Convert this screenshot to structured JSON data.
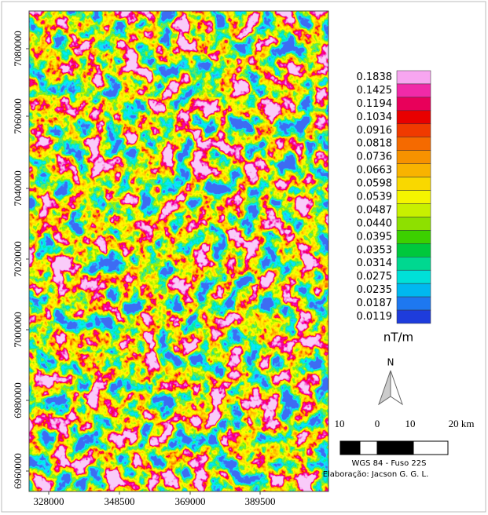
{
  "map": {
    "yticks": [
      "7080000",
      "7060000",
      "7040000",
      "7020000",
      "7000000",
      "6980000",
      "6960000"
    ],
    "xticks": [
      "328000",
      "348500",
      "369000",
      "389500"
    ]
  },
  "legend": {
    "labels": [
      "0.1838",
      "0.1425",
      "0.1194",
      "0.1034",
      "0.0916",
      "0.0818",
      "0.0736",
      "0.0663",
      "0.0598",
      "0.0539",
      "0.0487",
      "0.0440",
      "0.0395",
      "0.0353",
      "0.0314",
      "0.0275",
      "0.0235",
      "0.0187",
      "0.0119"
    ],
    "colors": [
      "#f7a6f0",
      "#f02aa8",
      "#e8005a",
      "#e80000",
      "#f03a00",
      "#f56a00",
      "#f79200",
      "#f9b300",
      "#f9d800",
      "#f5f500",
      "#c8f000",
      "#8ee000",
      "#3cd000",
      "#00c83c",
      "#00d890",
      "#00e0d8",
      "#00b8f0",
      "#1e78f0",
      "#1e3cdc"
    ],
    "unit": "nT/m"
  },
  "north": "N",
  "scale": {
    "labels": [
      "10",
      "0",
      "10",
      "20 km"
    ]
  },
  "credits": {
    "projection": "WGS 84 - Fuso 22S",
    "author": "Elaboração: Jacson G. G. L."
  }
}
